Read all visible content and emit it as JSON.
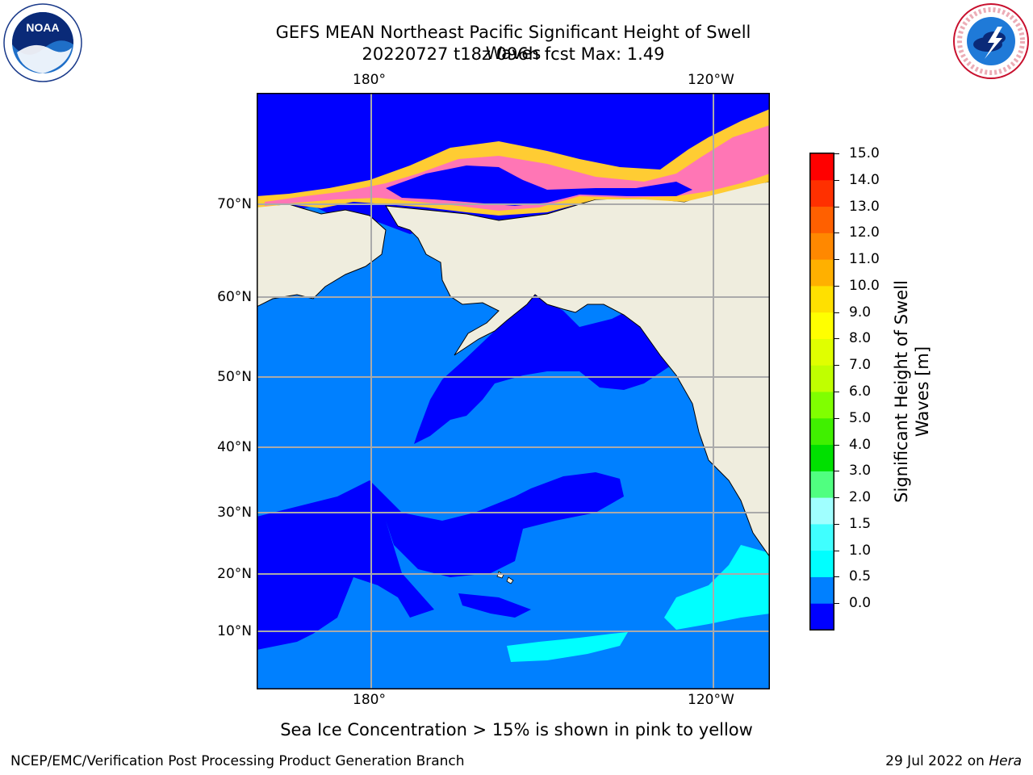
{
  "title_line1": "GEFS MEAN Northeast Pacific Significant Height of Swell Waves",
  "title_line2": "20220727 t18z 096h fcst   Max: 1.49",
  "lon_labels": [
    "180°",
    "120°W"
  ],
  "lat_labels": [
    "70°N",
    "60°N",
    "50°N",
    "40°N",
    "30°N",
    "20°N",
    "10°N"
  ],
  "colorbar": {
    "title_line1": "Significant Height of Swell",
    "title_line2": "Waves [m]",
    "ticks": [
      "15.0",
      "14.0",
      "13.0",
      "12.0",
      "11.0",
      "10.0",
      "9.0",
      "8.0",
      "7.0",
      "6.0",
      "5.0",
      "4.0",
      "3.0",
      "2.0",
      "1.5",
      "1.0",
      "0.5",
      "0.0"
    ],
    "colors": [
      "#0000ff",
      "#0080ff",
      "#00ffff",
      "#40ffff",
      "#a0ffff",
      "#50ff80",
      "#00e000",
      "#40f000",
      "#80ff00",
      "#c0ff00",
      "#e0ff00",
      "#ffff00",
      "#ffe000",
      "#ffb000",
      "#ff8800",
      "#ff6000",
      "#ff3000",
      "#ff0000"
    ]
  },
  "map": {
    "land_color": "#efedde",
    "band_colors": [
      "#0000ff",
      "#0080ff",
      "#00ffff"
    ],
    "ice_colors": [
      "#ff66cc",
      "#ffb0a0",
      "#ffcc33"
    ]
  },
  "note": "Sea Ice Concentration > 15% is shown in pink to yellow",
  "footer_left": "NCEP/EMC/Verification Post Processing Product Generation Branch",
  "footer_date": "29 Jul 2022 on",
  "footer_machine": "Hera",
  "logos": {
    "noaa_text": "NOAA",
    "nws_text": "NATIONAL WEATHER SERVICE"
  }
}
